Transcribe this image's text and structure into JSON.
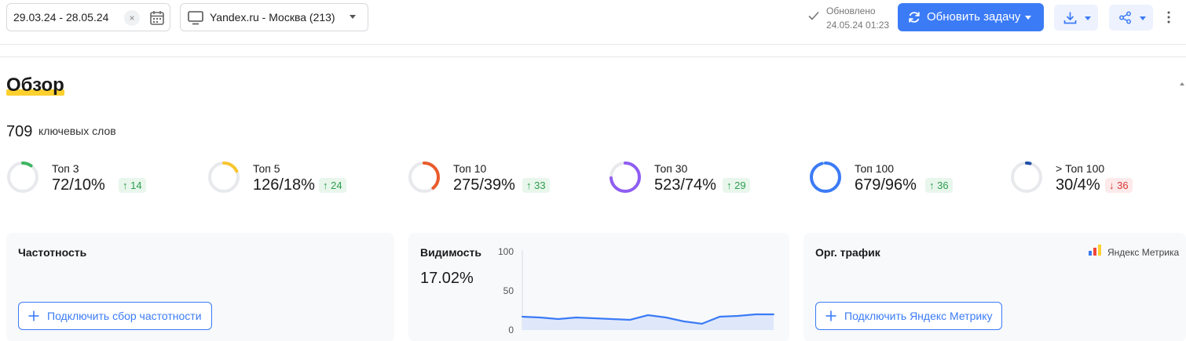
{
  "toolbar": {
    "date_range": "29.03.24 - 28.05.24",
    "search_engine": "Yandex.ru - Москва (213)",
    "updated_label": "Обновлено",
    "updated_date": "24.05.24 01:23",
    "update_button": "Обновить задачу"
  },
  "overview": {
    "title": "Обзор",
    "keyword_count": "709",
    "keyword_label": "ключевых слов",
    "metrics": [
      {
        "label": "Топ 3",
        "value": "72/10%",
        "delta": "14",
        "direction": "up",
        "fill": 0.1,
        "color": "#3db562"
      },
      {
        "label": "Топ 5",
        "value": "126/18%",
        "delta": "24",
        "direction": "up",
        "fill": 0.18,
        "color": "#f7c62f"
      },
      {
        "label": "Топ 10",
        "value": "275/39%",
        "delta": "33",
        "direction": "up",
        "fill": 0.39,
        "color": "#ea5b2c"
      },
      {
        "label": "Топ 30",
        "value": "523/74%",
        "delta": "29",
        "direction": "up",
        "fill": 0.74,
        "color": "#8f5df2"
      },
      {
        "label": "Топ 100",
        "value": "679/96%",
        "delta": "36",
        "direction": "up",
        "fill": 0.96,
        "color": "#3b7bf6"
      },
      {
        "label": "> Топ 100",
        "value": "30/4%",
        "delta": "36",
        "direction": "down",
        "fill": 0.04,
        "color": "#1f4fa8"
      }
    ]
  },
  "panels": {
    "frequency": {
      "title": "Частотность",
      "button": "Подключить сбор частотности"
    },
    "visibility": {
      "title": "Видимость",
      "value": "17.02%"
    },
    "traffic": {
      "title": "Орг. трафик",
      "metrika_label": "Яндекс Метрика",
      "button": "Подключить Яндекс Метрику"
    }
  },
  "chart_data": {
    "type": "area",
    "title": "",
    "xlabel": "",
    "ylabel": "",
    "ylim": [
      0,
      100
    ],
    "yticks": [
      "100",
      "50",
      "0"
    ],
    "grid": false,
    "series": [
      {
        "values": [
          17,
          16,
          14,
          16,
          15,
          14,
          13,
          19,
          16,
          11,
          8,
          17,
          18,
          20,
          20
        ]
      }
    ]
  }
}
